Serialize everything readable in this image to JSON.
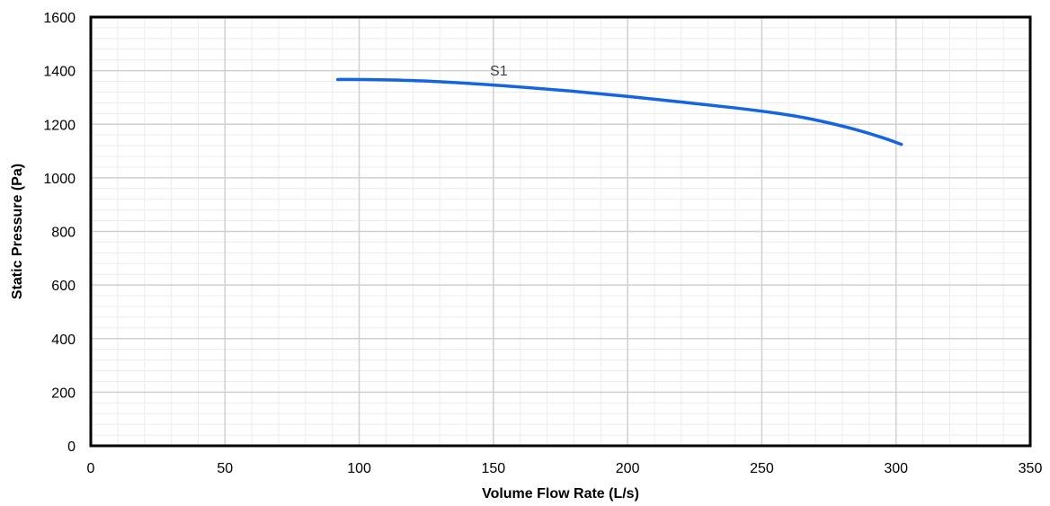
{
  "chart_data": {
    "type": "line",
    "title": "",
    "xlabel": "Volume Flow Rate (L/s)",
    "ylabel": "Static Pressure (Pa)",
    "xlim": [
      0,
      350
    ],
    "ylim": [
      0,
      1600
    ],
    "x_ticks": [
      0,
      50,
      100,
      150,
      200,
      250,
      300,
      350
    ],
    "y_ticks": [
      0,
      200,
      400,
      600,
      800,
      1000,
      1200,
      1400,
      1600
    ],
    "grid": true,
    "minor_grid": true,
    "legend": "none",
    "series": [
      {
        "name": "S1",
        "color": "#1565E0",
        "x": [
          92,
          100,
          120,
          140,
          160,
          180,
          200,
          220,
          240,
          255,
          265,
          275,
          285,
          295,
          302
        ],
        "y": [
          1367,
          1367,
          1363,
          1353,
          1339,
          1323,
          1304,
          1283,
          1261,
          1242,
          1226,
          1205,
          1180,
          1150,
          1125
        ]
      }
    ],
    "annotations": [
      {
        "text": "S1",
        "x": 152,
        "y": 1382
      }
    ]
  }
}
